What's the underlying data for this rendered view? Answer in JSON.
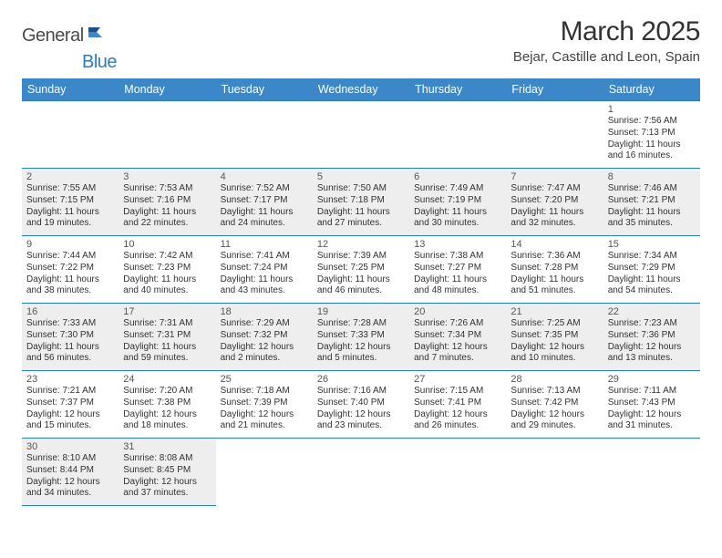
{
  "logo": {
    "general": "General",
    "blue": "Blue"
  },
  "title": "March 2025",
  "location": "Bejar, Castille and Leon, Spain",
  "colors": {
    "header_bg": "#3b87c8",
    "header_text": "#ffffff",
    "border": "#2b7bbf",
    "shaded_bg": "#eeeeee",
    "text": "#333333",
    "logo_blue": "#2b7bbf",
    "logo_gray": "#4a4a4a"
  },
  "weekdays": [
    "Sunday",
    "Monday",
    "Tuesday",
    "Wednesday",
    "Thursday",
    "Friday",
    "Saturday"
  ],
  "weeks": [
    [
      null,
      null,
      null,
      null,
      null,
      null,
      {
        "n": "1",
        "sr": "Sunrise: 7:56 AM",
        "ss": "Sunset: 7:13 PM",
        "dl": "Daylight: 11 hours and 16 minutes.",
        "shaded": false
      }
    ],
    [
      {
        "n": "2",
        "sr": "Sunrise: 7:55 AM",
        "ss": "Sunset: 7:15 PM",
        "dl": "Daylight: 11 hours and 19 minutes.",
        "shaded": true
      },
      {
        "n": "3",
        "sr": "Sunrise: 7:53 AM",
        "ss": "Sunset: 7:16 PM",
        "dl": "Daylight: 11 hours and 22 minutes.",
        "shaded": true
      },
      {
        "n": "4",
        "sr": "Sunrise: 7:52 AM",
        "ss": "Sunset: 7:17 PM",
        "dl": "Daylight: 11 hours and 24 minutes.",
        "shaded": true
      },
      {
        "n": "5",
        "sr": "Sunrise: 7:50 AM",
        "ss": "Sunset: 7:18 PM",
        "dl": "Daylight: 11 hours and 27 minutes.",
        "shaded": true
      },
      {
        "n": "6",
        "sr": "Sunrise: 7:49 AM",
        "ss": "Sunset: 7:19 PM",
        "dl": "Daylight: 11 hours and 30 minutes.",
        "shaded": true
      },
      {
        "n": "7",
        "sr": "Sunrise: 7:47 AM",
        "ss": "Sunset: 7:20 PM",
        "dl": "Daylight: 11 hours and 32 minutes.",
        "shaded": true
      },
      {
        "n": "8",
        "sr": "Sunrise: 7:46 AM",
        "ss": "Sunset: 7:21 PM",
        "dl": "Daylight: 11 hours and 35 minutes.",
        "shaded": true
      }
    ],
    [
      {
        "n": "9",
        "sr": "Sunrise: 7:44 AM",
        "ss": "Sunset: 7:22 PM",
        "dl": "Daylight: 11 hours and 38 minutes.",
        "shaded": false
      },
      {
        "n": "10",
        "sr": "Sunrise: 7:42 AM",
        "ss": "Sunset: 7:23 PM",
        "dl": "Daylight: 11 hours and 40 minutes.",
        "shaded": false
      },
      {
        "n": "11",
        "sr": "Sunrise: 7:41 AM",
        "ss": "Sunset: 7:24 PM",
        "dl": "Daylight: 11 hours and 43 minutes.",
        "shaded": false
      },
      {
        "n": "12",
        "sr": "Sunrise: 7:39 AM",
        "ss": "Sunset: 7:25 PM",
        "dl": "Daylight: 11 hours and 46 minutes.",
        "shaded": false
      },
      {
        "n": "13",
        "sr": "Sunrise: 7:38 AM",
        "ss": "Sunset: 7:27 PM",
        "dl": "Daylight: 11 hours and 48 minutes.",
        "shaded": false
      },
      {
        "n": "14",
        "sr": "Sunrise: 7:36 AM",
        "ss": "Sunset: 7:28 PM",
        "dl": "Daylight: 11 hours and 51 minutes.",
        "shaded": false
      },
      {
        "n": "15",
        "sr": "Sunrise: 7:34 AM",
        "ss": "Sunset: 7:29 PM",
        "dl": "Daylight: 11 hours and 54 minutes.",
        "shaded": false
      }
    ],
    [
      {
        "n": "16",
        "sr": "Sunrise: 7:33 AM",
        "ss": "Sunset: 7:30 PM",
        "dl": "Daylight: 11 hours and 56 minutes.",
        "shaded": true
      },
      {
        "n": "17",
        "sr": "Sunrise: 7:31 AM",
        "ss": "Sunset: 7:31 PM",
        "dl": "Daylight: 11 hours and 59 minutes.",
        "shaded": true
      },
      {
        "n": "18",
        "sr": "Sunrise: 7:29 AM",
        "ss": "Sunset: 7:32 PM",
        "dl": "Daylight: 12 hours and 2 minutes.",
        "shaded": true
      },
      {
        "n": "19",
        "sr": "Sunrise: 7:28 AM",
        "ss": "Sunset: 7:33 PM",
        "dl": "Daylight: 12 hours and 5 minutes.",
        "shaded": true
      },
      {
        "n": "20",
        "sr": "Sunrise: 7:26 AM",
        "ss": "Sunset: 7:34 PM",
        "dl": "Daylight: 12 hours and 7 minutes.",
        "shaded": true
      },
      {
        "n": "21",
        "sr": "Sunrise: 7:25 AM",
        "ss": "Sunset: 7:35 PM",
        "dl": "Daylight: 12 hours and 10 minutes.",
        "shaded": true
      },
      {
        "n": "22",
        "sr": "Sunrise: 7:23 AM",
        "ss": "Sunset: 7:36 PM",
        "dl": "Daylight: 12 hours and 13 minutes.",
        "shaded": true
      }
    ],
    [
      {
        "n": "23",
        "sr": "Sunrise: 7:21 AM",
        "ss": "Sunset: 7:37 PM",
        "dl": "Daylight: 12 hours and 15 minutes.",
        "shaded": false
      },
      {
        "n": "24",
        "sr": "Sunrise: 7:20 AM",
        "ss": "Sunset: 7:38 PM",
        "dl": "Daylight: 12 hours and 18 minutes.",
        "shaded": false
      },
      {
        "n": "25",
        "sr": "Sunrise: 7:18 AM",
        "ss": "Sunset: 7:39 PM",
        "dl": "Daylight: 12 hours and 21 minutes.",
        "shaded": false
      },
      {
        "n": "26",
        "sr": "Sunrise: 7:16 AM",
        "ss": "Sunset: 7:40 PM",
        "dl": "Daylight: 12 hours and 23 minutes.",
        "shaded": false
      },
      {
        "n": "27",
        "sr": "Sunrise: 7:15 AM",
        "ss": "Sunset: 7:41 PM",
        "dl": "Daylight: 12 hours and 26 minutes.",
        "shaded": false
      },
      {
        "n": "28",
        "sr": "Sunrise: 7:13 AM",
        "ss": "Sunset: 7:42 PM",
        "dl": "Daylight: 12 hours and 29 minutes.",
        "shaded": false
      },
      {
        "n": "29",
        "sr": "Sunrise: 7:11 AM",
        "ss": "Sunset: 7:43 PM",
        "dl": "Daylight: 12 hours and 31 minutes.",
        "shaded": false
      }
    ],
    [
      {
        "n": "30",
        "sr": "Sunrise: 8:10 AM",
        "ss": "Sunset: 8:44 PM",
        "dl": "Daylight: 12 hours and 34 minutes.",
        "shaded": true
      },
      {
        "n": "31",
        "sr": "Sunrise: 8:08 AM",
        "ss": "Sunset: 8:45 PM",
        "dl": "Daylight: 12 hours and 37 minutes.",
        "shaded": true
      },
      null,
      null,
      null,
      null,
      null
    ]
  ]
}
